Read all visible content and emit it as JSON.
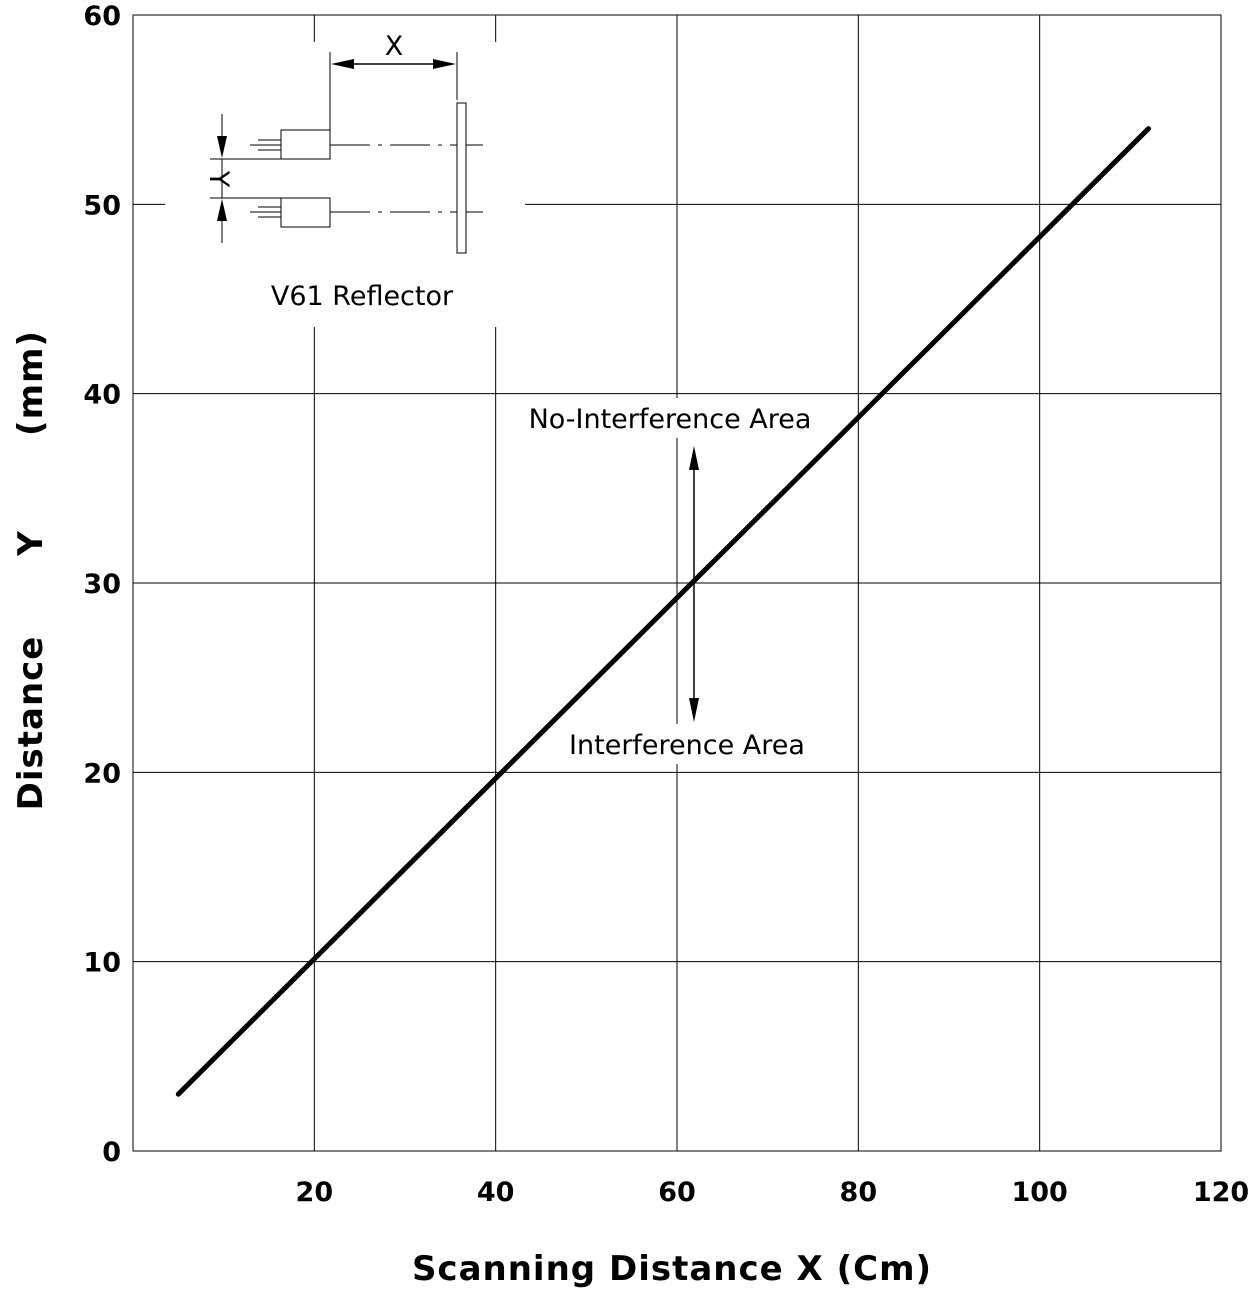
{
  "chart_data": {
    "type": "line",
    "title": "",
    "xlabel": "Scanning  Distance  X  (Cm)",
    "ylabel_parts": [
      "Distance",
      "Y",
      "(mm)"
    ],
    "xlim": [
      0,
      120
    ],
    "ylim": [
      0,
      60
    ],
    "x_ticks": [
      20,
      40,
      60,
      80,
      100,
      120
    ],
    "y_ticks": [
      0,
      10,
      20,
      30,
      40,
      50,
      60
    ],
    "grid": true,
    "series": [
      {
        "x": [
          5,
          112
        ],
        "y": [
          3,
          54
        ]
      }
    ],
    "annotations": {
      "upper_region": "No-Interference Area",
      "lower_region": "Interference Area",
      "inset_caption": "V61 Reflector",
      "inset_x_label": "X",
      "inset_y_label": "Y"
    }
  }
}
